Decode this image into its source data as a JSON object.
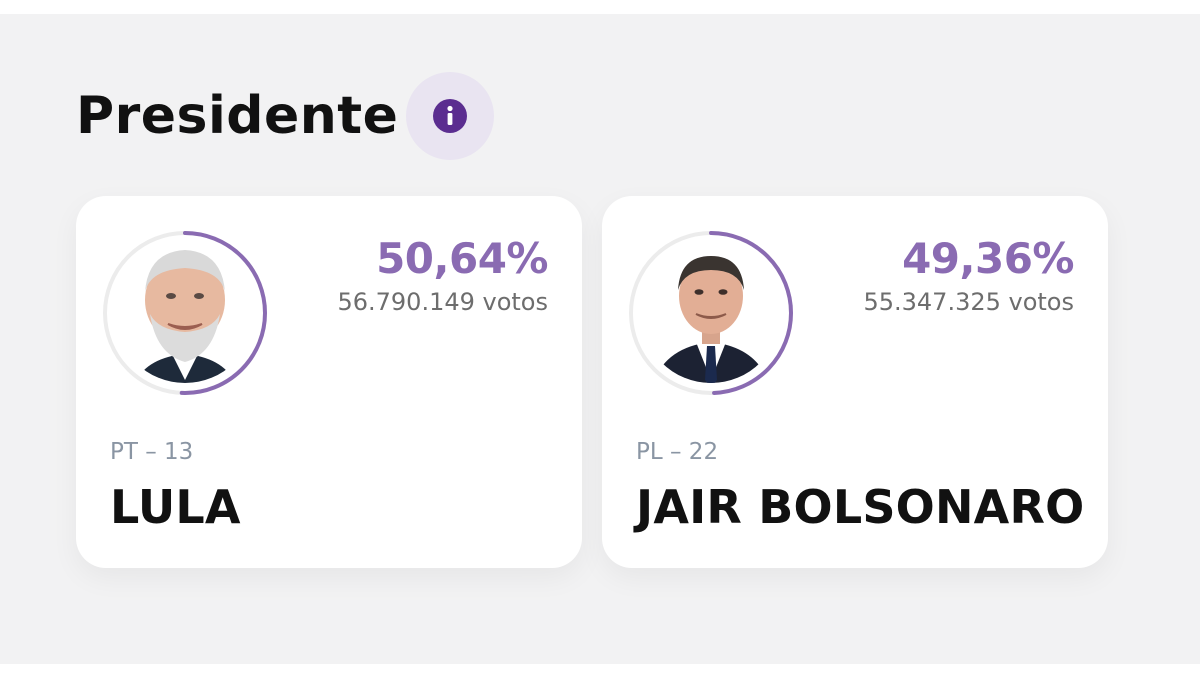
{
  "section": {
    "title": "Presidente",
    "info_icon": "info-icon"
  },
  "accent_color": "#8a6bb2",
  "candidates": [
    {
      "percent": "50,64%",
      "share": 0.5064,
      "votes": "56.790.149 votos",
      "party": "PT – 13",
      "name": "LULA"
    },
    {
      "percent": "49,36%",
      "share": 0.4936,
      "votes": "55.347.325 votos",
      "party": "PL – 22",
      "name": "JAIR BOLSONARO"
    }
  ]
}
